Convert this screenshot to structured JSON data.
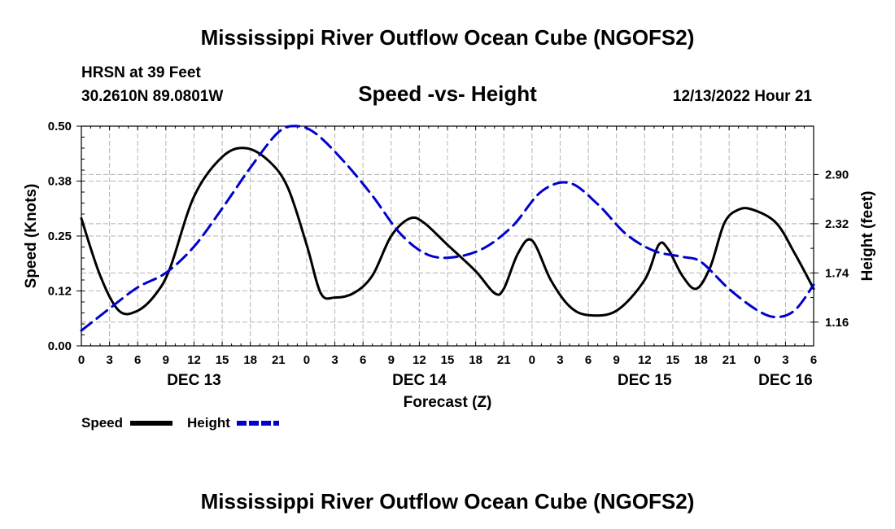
{
  "page_title": "Mississippi River Outflow Ocean Cube (NGOFS2)",
  "footer_title": "Mississippi River Outflow Ocean Cube (NGOFS2)",
  "station": {
    "name": "HRSN at 39 Feet",
    "coords": "30.2610N  89.0801W",
    "timestamp": "12/13/2022 Hour 21"
  },
  "chart_data": {
    "type": "line",
    "title": "Speed -vs- Height",
    "xlabel": "Forecast (Z)",
    "ylabel_left": "Speed (Knots)",
    "ylabel_right": "Height (feet)",
    "x_unit": "hours from Dec 13 00Z",
    "xlim": [
      0,
      78
    ],
    "ylim_left": [
      0,
      0.5
    ],
    "ylim_right": [
      0.88,
      3.47
    ],
    "x_ticks": [
      0,
      3,
      6,
      9,
      12,
      15,
      18,
      21,
      24,
      27,
      30,
      33,
      36,
      39,
      42,
      45,
      48,
      51,
      54,
      57,
      60,
      63,
      66,
      69,
      72,
      75,
      78
    ],
    "x_tick_labels": [
      "0",
      "3",
      "6",
      "9",
      "12",
      "15",
      "18",
      "21",
      "0",
      "3",
      "6",
      "9",
      "12",
      "15",
      "18",
      "21",
      "0",
      "3",
      "6",
      "9",
      "12",
      "15",
      "18",
      "21",
      "0",
      "3",
      "6"
    ],
    "date_labels": [
      {
        "x": 12,
        "text": "DEC 13"
      },
      {
        "x": 36,
        "text": "DEC 14"
      },
      {
        "x": 60,
        "text": "DEC 15"
      },
      {
        "x": 75,
        "text": "DEC 16"
      }
    ],
    "y_left_ticks": [
      0.0,
      0.125,
      0.25,
      0.375,
      0.5
    ],
    "y_left_tick_labels": [
      "0.00",
      "0.12",
      "0.25",
      "0.38",
      "0.50"
    ],
    "y_right_ticks": [
      1.16,
      1.74,
      2.32,
      2.9
    ],
    "y_right_tick_labels": [
      "1.16",
      "1.74",
      "2.32",
      "2.90"
    ],
    "grid": true,
    "legend": "bottom-left",
    "series": [
      {
        "name": "Speed",
        "axis": "left",
        "color": "#000000",
        "style": "solid",
        "x": [
          0,
          2,
          4,
          6,
          8,
          9.5,
          12,
          15,
          17.5,
          20,
          22,
          24,
          25.5,
          27,
          29,
          31,
          33,
          35,
          36.5,
          39,
          42,
          44,
          45,
          46.5,
          48,
          50,
          52,
          54,
          57,
          60,
          61.5,
          62.5,
          64,
          65.5,
          67,
          68.5,
          70,
          71.5,
          74,
          76,
          78
        ],
        "values": [
          0.29,
          0.16,
          0.08,
          0.08,
          0.12,
          0.18,
          0.34,
          0.43,
          0.45,
          0.42,
          0.36,
          0.23,
          0.12,
          0.11,
          0.12,
          0.16,
          0.25,
          0.29,
          0.28,
          0.23,
          0.17,
          0.12,
          0.13,
          0.21,
          0.24,
          0.15,
          0.09,
          0.07,
          0.08,
          0.15,
          0.23,
          0.22,
          0.16,
          0.13,
          0.18,
          0.28,
          0.31,
          0.31,
          0.28,
          0.21,
          0.13
        ]
      },
      {
        "name": "Height",
        "axis": "right",
        "color": "#0000cc",
        "style": "dashed",
        "x": [
          0,
          3,
          6,
          9,
          12,
          15,
          18,
          21,
          23,
          25,
          28,
          31,
          34,
          37,
          40,
          43,
          46,
          49,
          52,
          55,
          58,
          61,
          64,
          66,
          69,
          72,
          74,
          76,
          78
        ],
        "values": [
          1.06,
          1.32,
          1.57,
          1.74,
          2.05,
          2.5,
          2.98,
          3.4,
          3.47,
          3.38,
          3.05,
          2.65,
          2.2,
          1.95,
          1.93,
          2.04,
          2.3,
          2.7,
          2.8,
          2.55,
          2.2,
          2.0,
          1.93,
          1.87,
          1.55,
          1.3,
          1.22,
          1.3,
          1.6
        ]
      }
    ]
  }
}
